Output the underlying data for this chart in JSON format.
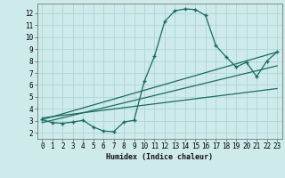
{
  "xlabel": "Humidex (Indice chaleur)",
  "ylabel": "",
  "bg_color": "#ceeaeb",
  "grid_color": "#b0d8da",
  "line_color": "#1a6b60",
  "xlim": [
    -0.5,
    23.5
  ],
  "ylim": [
    1.5,
    12.8
  ],
  "xticks": [
    0,
    1,
    2,
    3,
    4,
    5,
    6,
    7,
    8,
    9,
    10,
    11,
    12,
    13,
    14,
    15,
    16,
    17,
    18,
    19,
    20,
    21,
    22,
    23
  ],
  "yticks": [
    2,
    3,
    4,
    5,
    6,
    7,
    8,
    9,
    10,
    11,
    12
  ],
  "main_x": [
    0,
    1,
    2,
    3,
    4,
    5,
    6,
    7,
    8,
    9,
    10,
    11,
    12,
    13,
    14,
    15,
    16,
    17,
    18,
    19,
    20,
    21,
    22,
    23
  ],
  "main_y": [
    3.1,
    2.85,
    2.8,
    2.9,
    3.05,
    2.5,
    2.15,
    2.1,
    2.9,
    3.05,
    6.3,
    8.4,
    11.3,
    12.2,
    12.35,
    12.3,
    11.8,
    9.3,
    8.35,
    7.5,
    7.9,
    6.7,
    8.0,
    8.75
  ],
  "line1_x": [
    0,
    23
  ],
  "line1_y": [
    3.1,
    8.75
  ],
  "line2_x": [
    0,
    23
  ],
  "line2_y": [
    2.85,
    7.6
  ],
  "line3_x": [
    0,
    23
  ],
  "line3_y": [
    3.25,
    5.7
  ]
}
